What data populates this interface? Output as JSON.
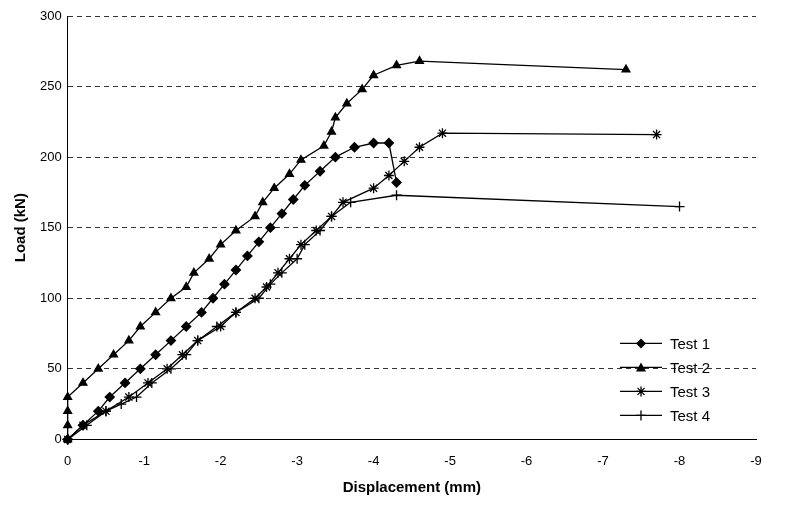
{
  "chart_data": {
    "type": "line",
    "x_label": "Displacement (mm)",
    "y_label": "Load (kN)",
    "xlim": [
      0,
      -9
    ],
    "xticks": [
      0,
      -1,
      -2,
      -3,
      -4,
      -5,
      -6,
      -7,
      -8,
      -9
    ],
    "ylim": [
      0,
      300
    ],
    "yticks": [
      0,
      50,
      100,
      150,
      200,
      250,
      300
    ],
    "grid": true,
    "legend": "lower right",
    "series": [
      {
        "name": "Test 1",
        "color": "#000000",
        "marker": "diamond",
        "line_style": "solid",
        "x": [
          0,
          -0.2,
          -0.4,
          -0.55,
          -0.75,
          -0.95,
          -1.15,
          -1.35,
          -1.55,
          -1.75,
          -1.9,
          -2.05,
          -2.2,
          -2.35,
          -2.5,
          -2.65,
          -2.8,
          -2.95,
          -3.1,
          -3.3,
          -3.5,
          -3.75,
          -4.0,
          -4.2,
          -4.3
        ],
        "values": [
          0,
          10,
          20,
          30,
          40,
          50,
          60,
          70,
          80,
          90,
          100,
          110,
          120,
          130,
          140,
          150,
          160,
          170,
          180,
          190,
          200,
          207,
          210,
          210,
          182
        ]
      },
      {
        "name": "Test 2",
        "color": "#000000",
        "marker": "triangle",
        "line_style": "solid",
        "x": [
          0,
          0,
          0,
          0,
          -0.2,
          -0.4,
          -0.6,
          -0.8,
          -0.95,
          -1.15,
          -1.35,
          -1.55,
          -1.65,
          -1.85,
          -2.0,
          -2.2,
          -2.45,
          -2.55,
          -2.7,
          -2.9,
          -3.05,
          -3.35,
          -3.45,
          -3.5,
          -3.65,
          -3.85,
          -4.0,
          -4.3,
          -4.6,
          -7.3
        ],
        "values": [
          0,
          10,
          20,
          30,
          40,
          50,
          60,
          70,
          80,
          90,
          100,
          108,
          118,
          128,
          138,
          148,
          158,
          168,
          178,
          188,
          198,
          208,
          218,
          228,
          238,
          248,
          258,
          265,
          268,
          262
        ]
      },
      {
        "name": "Test 3",
        "color": "#000000",
        "marker": "star",
        "line_style": "solid",
        "x": [
          0,
          -0.2,
          -0.5,
          -0.8,
          -1.05,
          -1.3,
          -1.5,
          -1.7,
          -2.0,
          -2.2,
          -2.45,
          -2.6,
          -2.75,
          -2.9,
          -3.05,
          -3.25,
          -3.45,
          -3.6,
          -4.0,
          -4.2,
          -4.4,
          -4.6,
          -4.9,
          -7.7
        ],
        "values": [
          0,
          10,
          20,
          30,
          40,
          50,
          60,
          70,
          80,
          90,
          100,
          108,
          118,
          128,
          138,
          148,
          158,
          168,
          178,
          187,
          197,
          207,
          217,
          216
        ]
      },
      {
        "name": "Test 4",
        "color": "#000000",
        "marker": "cross",
        "line_style": "solid",
        "x": [
          0,
          -0.25,
          -0.5,
          -0.7,
          -0.9,
          -1.1,
          -1.35,
          -1.55,
          -1.7,
          -1.95,
          -2.2,
          -2.5,
          -2.65,
          -2.8,
          -3.0,
          -3.1,
          -3.3,
          -3.45,
          -3.7,
          -4.3,
          -8.0
        ],
        "values": [
          0,
          10,
          20,
          25,
          30,
          40,
          50,
          60,
          70,
          80,
          90,
          100,
          110,
          118,
          128,
          138,
          148,
          158,
          168,
          173,
          165
        ]
      }
    ]
  }
}
